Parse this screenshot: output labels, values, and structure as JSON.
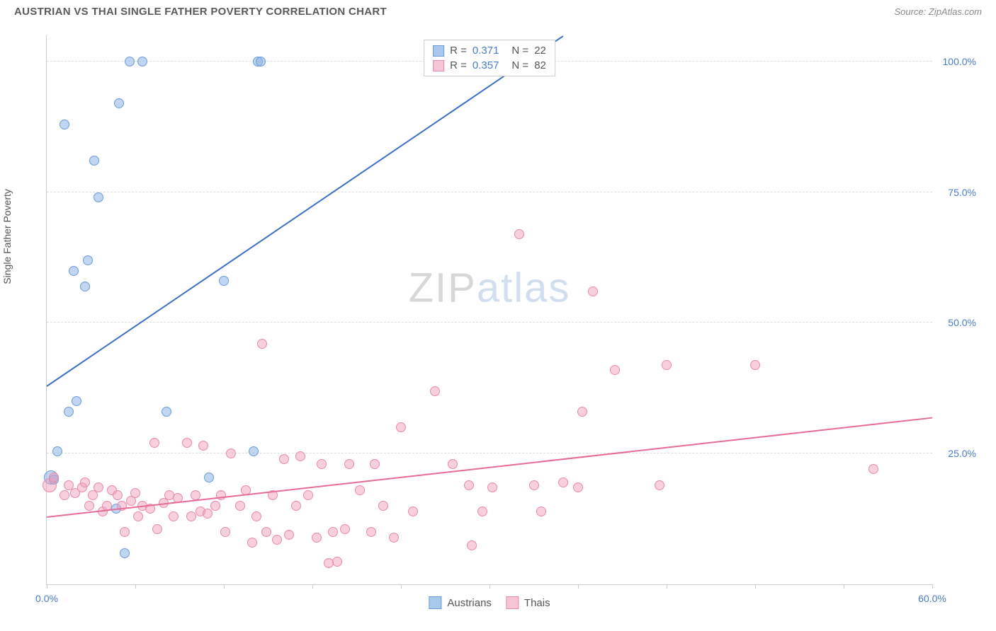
{
  "title": "AUSTRIAN VS THAI SINGLE FATHER POVERTY CORRELATION CHART",
  "source": "Source: ZipAtlas.com",
  "chart": {
    "type": "scatter",
    "ylabel": "Single Father Poverty",
    "xlim": [
      0,
      60
    ],
    "ylim": [
      0,
      105
    ],
    "xticks": [
      0,
      6,
      12,
      18,
      24,
      30,
      36,
      42,
      48,
      54,
      60
    ],
    "xtick_labels": {
      "0": "0.0%",
      "60": "60.0%"
    },
    "yticks": [
      25,
      50,
      75,
      100
    ],
    "ytick_labels": {
      "25": "25.0%",
      "50": "50.0%",
      "75": "75.0%",
      "100": "100.0%"
    },
    "background_color": "#ffffff",
    "grid_color": "#dddddd",
    "axis_color": "#cccccc",
    "tick_label_color": "#4a7bc8",
    "label_color": "#555555",
    "label_fontsize": 14,
    "marker_size": 14,
    "marker_size_big": 20,
    "series": [
      {
        "name": "Austrians",
        "color_fill": "rgba(140,180,230,0.55)",
        "color_stroke": "#6a9bd8",
        "color_hex": "#a8c8ec",
        "trend_color": "#3b6fc4",
        "r_value": "0.371",
        "n_value": "22",
        "trend": {
          "x1": 0,
          "y1": 38,
          "x2": 35,
          "y2": 105
        },
        "points": [
          {
            "x": 0.3,
            "y": 20.5,
            "size": 20
          },
          {
            "x": 0.5,
            "y": 20,
            "size": 14
          },
          {
            "x": 0.7,
            "y": 25.5
          },
          {
            "x": 1.2,
            "y": 88
          },
          {
            "x": 1.5,
            "y": 33
          },
          {
            "x": 1.8,
            "y": 60
          },
          {
            "x": 2,
            "y": 35
          },
          {
            "x": 2.6,
            "y": 57
          },
          {
            "x": 2.8,
            "y": 62
          },
          {
            "x": 3.2,
            "y": 81
          },
          {
            "x": 3.5,
            "y": 74
          },
          {
            "x": 4.7,
            "y": 14.5
          },
          {
            "x": 4.9,
            "y": 92
          },
          {
            "x": 5.3,
            "y": 6
          },
          {
            "x": 5.6,
            "y": 100
          },
          {
            "x": 6.5,
            "y": 100
          },
          {
            "x": 8.1,
            "y": 33
          },
          {
            "x": 11,
            "y": 20.5
          },
          {
            "x": 12,
            "y": 58
          },
          {
            "x": 14,
            "y": 25.5
          },
          {
            "x": 14.3,
            "y": 100
          },
          {
            "x": 14.5,
            "y": 100
          }
        ]
      },
      {
        "name": "Thais",
        "color_fill": "rgba(240,160,190,0.5)",
        "color_stroke": "#e88aa8",
        "color_hex": "#f5c4d6",
        "trend_color": "#e86b94",
        "r_value": "0.357",
        "n_value": "82",
        "trend": {
          "x1": 0,
          "y1": 13,
          "x2": 60,
          "y2": 32
        },
        "points": [
          {
            "x": 0.2,
            "y": 19,
            "size": 20
          },
          {
            "x": 0.5,
            "y": 20.5
          },
          {
            "x": 1.2,
            "y": 17
          },
          {
            "x": 1.5,
            "y": 19
          },
          {
            "x": 1.9,
            "y": 17.5
          },
          {
            "x": 2.4,
            "y": 18.5
          },
          {
            "x": 2.6,
            "y": 19.5
          },
          {
            "x": 2.9,
            "y": 15
          },
          {
            "x": 3.1,
            "y": 17
          },
          {
            "x": 3.5,
            "y": 18.5
          },
          {
            "x": 3.8,
            "y": 14
          },
          {
            "x": 4.1,
            "y": 15
          },
          {
            "x": 4.4,
            "y": 18
          },
          {
            "x": 4.8,
            "y": 17
          },
          {
            "x": 5.1,
            "y": 15
          },
          {
            "x": 5.3,
            "y": 10
          },
          {
            "x": 5.7,
            "y": 16
          },
          {
            "x": 6,
            "y": 17.5
          },
          {
            "x": 6.2,
            "y": 13
          },
          {
            "x": 6.5,
            "y": 15
          },
          {
            "x": 7,
            "y": 14.5
          },
          {
            "x": 7.3,
            "y": 27
          },
          {
            "x": 7.5,
            "y": 10.5
          },
          {
            "x": 7.9,
            "y": 15.5
          },
          {
            "x": 8.3,
            "y": 17
          },
          {
            "x": 8.6,
            "y": 13
          },
          {
            "x": 8.9,
            "y": 16.5
          },
          {
            "x": 9.5,
            "y": 27
          },
          {
            "x": 9.8,
            "y": 13
          },
          {
            "x": 10.1,
            "y": 17
          },
          {
            "x": 10.4,
            "y": 14
          },
          {
            "x": 10.6,
            "y": 26.5
          },
          {
            "x": 10.9,
            "y": 13.5
          },
          {
            "x": 11.4,
            "y": 15
          },
          {
            "x": 11.8,
            "y": 17
          },
          {
            "x": 12.1,
            "y": 10
          },
          {
            "x": 12.5,
            "y": 25
          },
          {
            "x": 13.1,
            "y": 15
          },
          {
            "x": 13.5,
            "y": 18
          },
          {
            "x": 13.9,
            "y": 8
          },
          {
            "x": 14.2,
            "y": 13
          },
          {
            "x": 14.6,
            "y": 46
          },
          {
            "x": 14.9,
            "y": 10
          },
          {
            "x": 15.3,
            "y": 17
          },
          {
            "x": 15.6,
            "y": 8.5
          },
          {
            "x": 16.1,
            "y": 24
          },
          {
            "x": 16.4,
            "y": 9.5
          },
          {
            "x": 16.9,
            "y": 15
          },
          {
            "x": 17.2,
            "y": 24.5
          },
          {
            "x": 17.7,
            "y": 17
          },
          {
            "x": 18.3,
            "y": 9
          },
          {
            "x": 18.6,
            "y": 23
          },
          {
            "x": 19.1,
            "y": 4
          },
          {
            "x": 19.4,
            "y": 10
          },
          {
            "x": 19.7,
            "y": 4.3
          },
          {
            "x": 20.2,
            "y": 10.5
          },
          {
            "x": 20.5,
            "y": 23
          },
          {
            "x": 21.2,
            "y": 18
          },
          {
            "x": 22,
            "y": 10
          },
          {
            "x": 22.2,
            "y": 23
          },
          {
            "x": 22.8,
            "y": 15
          },
          {
            "x": 23.5,
            "y": 9
          },
          {
            "x": 24,
            "y": 30
          },
          {
            "x": 24.8,
            "y": 14
          },
          {
            "x": 26.3,
            "y": 37
          },
          {
            "x": 27.5,
            "y": 23
          },
          {
            "x": 28.6,
            "y": 19
          },
          {
            "x": 28.8,
            "y": 7.5
          },
          {
            "x": 29.5,
            "y": 14
          },
          {
            "x": 30.2,
            "y": 18.5
          },
          {
            "x": 32,
            "y": 67
          },
          {
            "x": 33,
            "y": 19
          },
          {
            "x": 33.5,
            "y": 14
          },
          {
            "x": 35,
            "y": 19.5
          },
          {
            "x": 36,
            "y": 18.5
          },
          {
            "x": 36.3,
            "y": 33
          },
          {
            "x": 37,
            "y": 56
          },
          {
            "x": 38.5,
            "y": 41
          },
          {
            "x": 41.5,
            "y": 19
          },
          {
            "x": 42,
            "y": 42
          },
          {
            "x": 48,
            "y": 42
          },
          {
            "x": 56,
            "y": 22
          }
        ]
      }
    ],
    "legend_bottom": [
      {
        "label": "Austrians",
        "fill": "#a8c8ec",
        "stroke": "#6a9bd8"
      },
      {
        "label": "Thais",
        "fill": "#f5c4d6",
        "stroke": "#e88aa8"
      }
    ],
    "watermark": {
      "bold": "ZIP",
      "light": "atlas"
    }
  }
}
